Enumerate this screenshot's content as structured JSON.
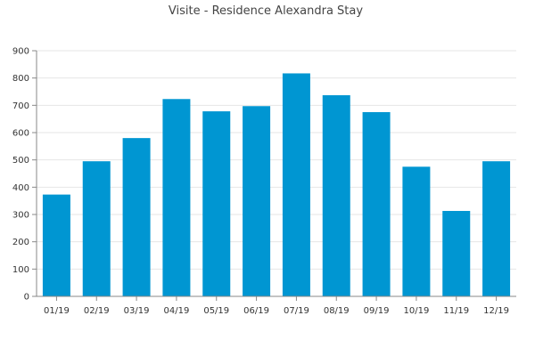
{
  "chart_data": {
    "type": "bar",
    "title": "Visite - Residence Alexandra Stay",
    "xlabel": "",
    "ylabel": "",
    "categories": [
      "01/19",
      "02/19",
      "03/19",
      "04/19",
      "05/19",
      "06/19",
      "07/19",
      "08/19",
      "09/19",
      "10/19",
      "11/19",
      "12/19"
    ],
    "values": [
      373,
      495,
      580,
      723,
      678,
      697,
      817,
      737,
      675,
      475,
      313,
      495
    ],
    "ylim": [
      0,
      900
    ],
    "yticks": [
      0,
      100,
      200,
      300,
      400,
      500,
      600,
      700,
      800,
      900
    ],
    "grid": true,
    "bar_color": "#0096d2",
    "axis_color": "#888888",
    "grid_color": "#e6e6e6"
  }
}
